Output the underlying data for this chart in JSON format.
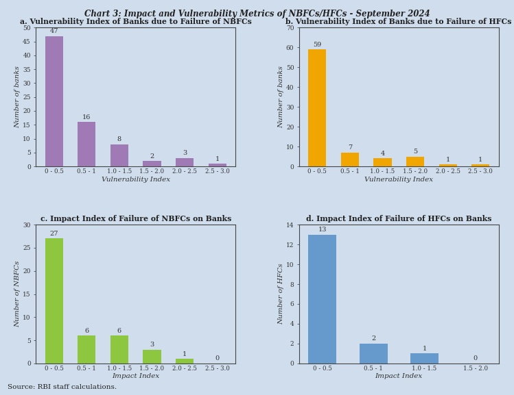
{
  "title": "Chart 3: Impact and Vulnerability Metrics of NBFCs/HFCs - September 2024",
  "source": "Source: RBI staff calculations.",
  "background_color": "#cfdded",
  "panel_background": "#cfdded",
  "subplots": [
    {
      "label": "a. Vulnerability Index of Banks due to Failure of NBFCs",
      "categories": [
        "0 - 0.5",
        "0.5 - 1",
        "1.0 - 1.5",
        "1.5 - 2.0",
        "2.0 - 2.5",
        "2.5 - 3.0"
      ],
      "values": [
        47,
        16,
        8,
        2,
        3,
        1
      ],
      "bar_color": "#a07ab5",
      "xlabel": "Vulnerability Index",
      "ylabel": "Number of banks",
      "ylim": [
        0,
        50
      ],
      "yticks": [
        0,
        5,
        10,
        15,
        20,
        25,
        30,
        35,
        40,
        45,
        50
      ]
    },
    {
      "label": "b. Vulnerability Index of Banks due to Failure of HFCs",
      "categories": [
        "0 - 0.5",
        "0.5 - 1",
        "1.0 - 1.5",
        "1.5 - 2.0",
        "2.0 - 2.5",
        "2.5 - 3.0"
      ],
      "values": [
        59,
        7,
        4,
        5,
        1,
        1
      ],
      "bar_color": "#f0a500",
      "xlabel": "Vulnerability Index",
      "ylabel": "Number of banks",
      "ylim": [
        0,
        70
      ],
      "yticks": [
        0,
        10,
        20,
        30,
        40,
        50,
        60,
        70
      ]
    },
    {
      "label": "c. Impact Index of Failure of NBFCs on Banks",
      "categories": [
        "0 - 0.5",
        "0.5 - 1",
        "1.0 - 1.5",
        "1.5 - 2.0",
        "2.0 - 2.5",
        "2.5 - 3.0"
      ],
      "values": [
        27,
        6,
        6,
        3,
        1,
        0
      ],
      "bar_color": "#8dc63f",
      "xlabel": "Impact Index",
      "ylabel": "Number of NBFCs",
      "ylim": [
        0,
        30
      ],
      "yticks": [
        0,
        5,
        10,
        15,
        20,
        25,
        30
      ]
    },
    {
      "label": "d. Impact Index of Failure of HFCs on Banks",
      "categories": [
        "0 - 0.5",
        "0.5 - 1",
        "1.0 - 1.5",
        "1.5 - 2.0"
      ],
      "values": [
        13,
        2,
        1,
        0
      ],
      "bar_color": "#6699cc",
      "xlabel": "Impact Index",
      "ylabel": "Number of HFCs",
      "ylim": [
        0,
        14
      ],
      "yticks": [
        0,
        2,
        4,
        6,
        8,
        10,
        12,
        14
      ]
    }
  ]
}
